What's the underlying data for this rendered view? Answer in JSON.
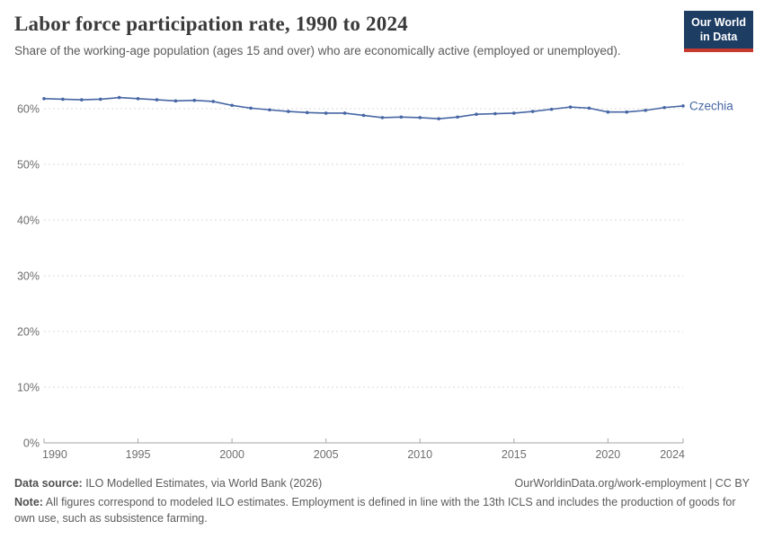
{
  "header": {
    "title": "Labor force participation rate, 1990 to 2024",
    "subtitle": "Share of the working-age population (ages 15 and over) who are economically active (employed or unemployed).",
    "logo": {
      "line1": "Our World",
      "line2": "in Data",
      "bg_color": "#1d3d63",
      "accent_color": "#c5392f"
    }
  },
  "chart_data": {
    "type": "line",
    "title": "Labor force participation rate, 1990 to 2024",
    "xlabel": "",
    "ylabel": "",
    "xlim": [
      1990,
      2024
    ],
    "ylim": [
      0,
      63
    ],
    "yticks": [
      0,
      10,
      20,
      30,
      40,
      50,
      60
    ],
    "ytick_suffix": "%",
    "xticks": [
      1990,
      1995,
      2000,
      2005,
      2010,
      2015,
      2020,
      2024
    ],
    "grid": "horizontal-dashed",
    "legend_position": "end-of-line-label",
    "grid_color": "#d9d9d9",
    "axis_color": "#a6a6a6",
    "tick_label_color": "#6e6e6e",
    "x": [
      1990,
      1991,
      1992,
      1993,
      1994,
      1995,
      1996,
      1997,
      1998,
      1999,
      2000,
      2001,
      2002,
      2003,
      2004,
      2005,
      2006,
      2007,
      2008,
      2009,
      2010,
      2011,
      2012,
      2013,
      2014,
      2015,
      2016,
      2017,
      2018,
      2019,
      2020,
      2021,
      2022,
      2023,
      2024
    ],
    "series": [
      {
        "name": "Czechia",
        "color": "#4766a4",
        "values": [
          61.8,
          61.7,
          61.6,
          61.7,
          62.0,
          61.8,
          61.6,
          61.4,
          61.5,
          61.3,
          60.6,
          60.1,
          59.8,
          59.5,
          59.3,
          59.2,
          59.2,
          58.8,
          58.4,
          58.5,
          58.4,
          58.2,
          58.5,
          59.0,
          59.1,
          59.2,
          59.5,
          59.9,
          60.3,
          60.1,
          59.4,
          59.4,
          59.7,
          60.2,
          60.5
        ]
      }
    ]
  },
  "footer": {
    "source_label": "Data source:",
    "source_text": " ILO Modelled Estimates, via World Bank (2026)",
    "url_text": "OurWorldinData.org/work-employment",
    "license_text": " | CC BY",
    "note_label": "Note:",
    "note_text": " All figures correspond to modeled ILO estimates. Employment is defined in line with the 13th ICLS and includes the production of goods for own use, such as subsistence farming."
  }
}
